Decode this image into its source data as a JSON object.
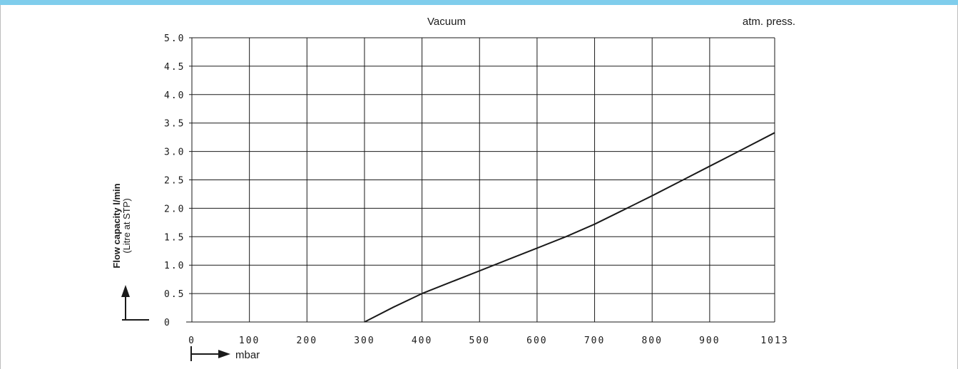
{
  "colors": {
    "top_bar": "#7fcdec",
    "line": "#1a1a1a",
    "grid": "#1a1a1a"
  },
  "chart_data": {
    "type": "line",
    "header_left": "Vacuum",
    "header_right": "atm. press.",
    "ylabel": "Flow capacity l/min",
    "ylabel_sub": "(Litre at STP)",
    "xunit": "mbar",
    "xlim": [
      0,
      1013
    ],
    "ylim": [
      0,
      5.0
    ],
    "x_ticks": [
      0,
      100,
      200,
      300,
      400,
      500,
      600,
      700,
      800,
      900,
      1013
    ],
    "x_tick_labels": [
      "0",
      "100",
      "200",
      "300",
      "400",
      "500",
      "600",
      "700",
      "800",
      "900",
      "1013"
    ],
    "y_ticks": [
      0,
      0.5,
      1.0,
      1.5,
      2.0,
      2.5,
      3.0,
      3.5,
      4.0,
      4.5,
      5.0
    ],
    "y_tick_labels": [
      "0",
      "0.5",
      "1.0",
      "1.5",
      "2.0",
      "2.5",
      "3.0",
      "3.5",
      "4.0",
      "4.5",
      "5.0"
    ],
    "grid": true,
    "series": [
      {
        "x": [
          300,
          350,
          400,
          450,
          500,
          550,
          600,
          650,
          700,
          750,
          800,
          850,
          900,
          950,
          1013
        ],
        "y": [
          0,
          0.26,
          0.5,
          0.7,
          0.9,
          1.1,
          1.3,
          1.5,
          1.72,
          1.97,
          2.22,
          2.48,
          2.74,
          3.0,
          3.33
        ]
      }
    ]
  }
}
